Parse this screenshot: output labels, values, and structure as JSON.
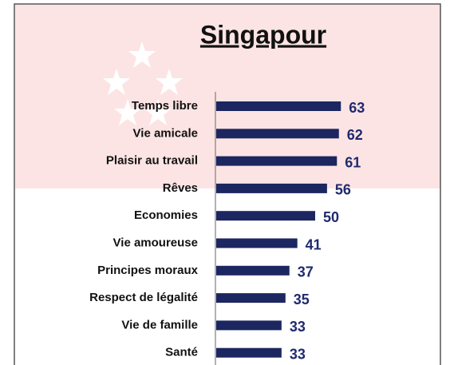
{
  "chart_data": {
    "type": "bar",
    "orientation": "horizontal",
    "title": "Singapour",
    "categories": [
      "Temps libre",
      "Vie amicale",
      "Plaisir au travail",
      "Rêves",
      "Economies",
      "Vie amoureuse",
      "Principes moraux",
      "Respect de légalité",
      "Vie de famille",
      "Santé"
    ],
    "values": [
      63,
      62,
      61,
      56,
      50,
      41,
      37,
      35,
      33,
      33
    ],
    "color": "#1c2660"
  }
}
